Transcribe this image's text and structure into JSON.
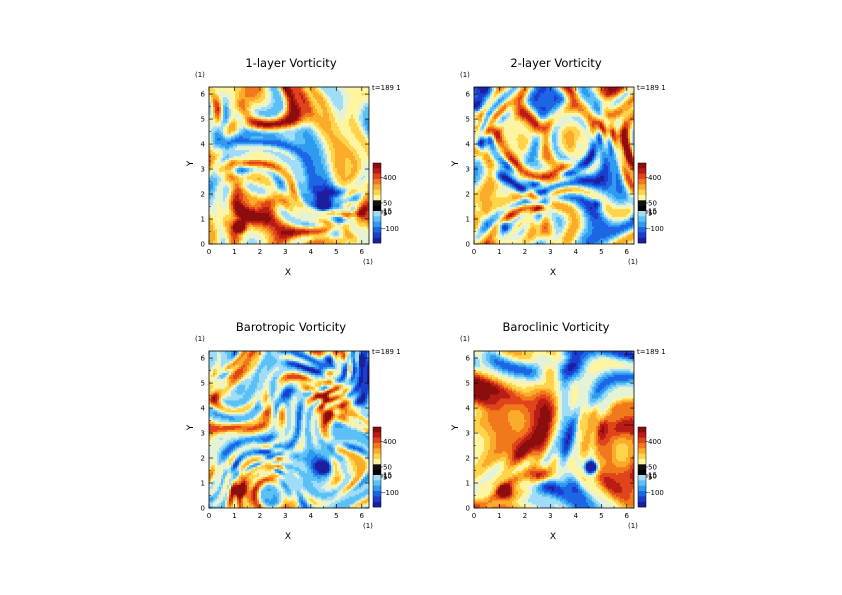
{
  "chart_data": [
    {
      "type": "heatmap",
      "title": "1-layer Vorticity",
      "xlabel": "X",
      "ylabel": "Y",
      "unit": "(1)",
      "time_label": "t=189",
      "time_unit": "1",
      "xlim": [
        0,
        6.2832
      ],
      "ylim": [
        0,
        6.2832
      ],
      "xticks": [
        "0",
        "1",
        "2",
        "3",
        "4",
        "5",
        "6"
      ],
      "yticks": [
        "0",
        "1",
        "2",
        "3",
        "4",
        "5",
        "6"
      ],
      "colorbar": {
        "range": [
          -200,
          600
        ],
        "tick_values": [
          400,
          50,
          15,
          10,
          5,
          -100
        ],
        "tick_labels": [
          "400",
          "50",
          "15",
          "10",
          "5",
          "-100"
        ]
      },
      "field_description": "turbulent vorticity field with strong positive vortex near (1.1,0.7) and negative vortex near (4.5,1.6)",
      "seed": 11,
      "bias": 0.15,
      "smoothness": 0.75,
      "vortices": [
        {
          "x": 1.2,
          "y": 0.7,
          "strength": "positive"
        },
        {
          "x": 4.5,
          "y": 1.65,
          "strength": "negative"
        }
      ]
    },
    {
      "type": "heatmap",
      "title": "2-layer Vorticity",
      "xlabel": "X",
      "ylabel": "Y",
      "unit": "(1)",
      "time_label": "t=189",
      "time_unit": "1",
      "xlim": [
        0,
        6.2832
      ],
      "ylim": [
        0,
        6.2832
      ],
      "xticks": [
        "0",
        "1",
        "2",
        "3",
        "4",
        "5",
        "6"
      ],
      "yticks": [
        "0",
        "1",
        "2",
        "3",
        "4",
        "5",
        "6"
      ],
      "colorbar": {
        "range": [
          -200,
          600
        ],
        "tick_values": [
          400,
          50,
          15,
          10,
          5,
          -100
        ],
        "tick_labels": [
          "400",
          "50",
          "15",
          "10",
          "5",
          "-100"
        ]
      },
      "seed": 23,
      "bias": 0.05,
      "smoothness": 0.8,
      "vortices": [
        {
          "x": 4.8,
          "y": 1.6,
          "strength": "weak-negative"
        },
        {
          "x": 1.2,
          "y": 0.7,
          "strength": "weak-negative"
        }
      ]
    },
    {
      "type": "heatmap",
      "title": "Barotropic Vorticity",
      "xlabel": "X",
      "ylabel": "Y",
      "unit": "(1)",
      "time_label": "t=189",
      "time_unit": "1",
      "xlim": [
        0,
        6.2832
      ],
      "ylim": [
        0,
        6.2832
      ],
      "xticks": [
        "0",
        "1",
        "2",
        "3",
        "4",
        "5",
        "6"
      ],
      "yticks": [
        "0",
        "1",
        "2",
        "3",
        "4",
        "5",
        "6"
      ],
      "colorbar": {
        "range": [
          -200,
          600
        ],
        "tick_values": [
          400,
          50,
          15,
          10,
          5,
          -100
        ],
        "tick_labels": [
          "400",
          "50",
          "15",
          "10",
          "5",
          "-100"
        ]
      },
      "seed": 37,
      "bias": 0.0,
      "smoothness": 0.4,
      "vortices": [
        {
          "x": 1.2,
          "y": 0.7,
          "strength": "positive"
        },
        {
          "x": 4.5,
          "y": 1.65,
          "strength": "negative"
        }
      ]
    },
    {
      "type": "heatmap",
      "title": "Baroclinic Vorticity",
      "xlabel": "X",
      "ylabel": "Y",
      "unit": "(1)",
      "time_label": "t=189",
      "time_unit": "1",
      "xlim": [
        0,
        6.2832
      ],
      "ylim": [
        0,
        6.2832
      ],
      "xticks": [
        "0",
        "1",
        "2",
        "3",
        "4",
        "5",
        "6"
      ],
      "yticks": [
        "0",
        "1",
        "2",
        "3",
        "4",
        "5",
        "6"
      ],
      "colorbar": {
        "range": [
          -200,
          600
        ],
        "tick_values": [
          400,
          50,
          15,
          10,
          5,
          -100
        ],
        "tick_labels": [
          "400",
          "50",
          "15",
          "10",
          "5",
          "-100"
        ]
      },
      "seed": 53,
      "bias": 0.12,
      "smoothness": 0.75,
      "vortices": [
        {
          "x": 1.2,
          "y": 0.7,
          "strength": "positive"
        },
        {
          "x": 4.6,
          "y": 1.65,
          "strength": "negative"
        }
      ]
    }
  ],
  "colors": {
    "palette": [
      "#1c1f9e",
      "#1a3fcf",
      "#1d67e6",
      "#2f9bf0",
      "#5bc0f5",
      "#9fdcf7",
      "#e4f3d6",
      "#fff4a0",
      "#ffd44a",
      "#fbab2a",
      "#f2781c",
      "#e0441a",
      "#b81c14",
      "#8a0e0c"
    ],
    "colorbar": [
      "#1c1f9e",
      "#1a3fcf",
      "#1d67e6",
      "#2f9bf0",
      "#5bc0f5",
      "#9fdcf7",
      "#000000",
      "#111111",
      "#fff4a0",
      "#ffd44a",
      "#fbab2a",
      "#f2781c",
      "#e0441a",
      "#b81c14",
      "#8a0e0c"
    ]
  }
}
